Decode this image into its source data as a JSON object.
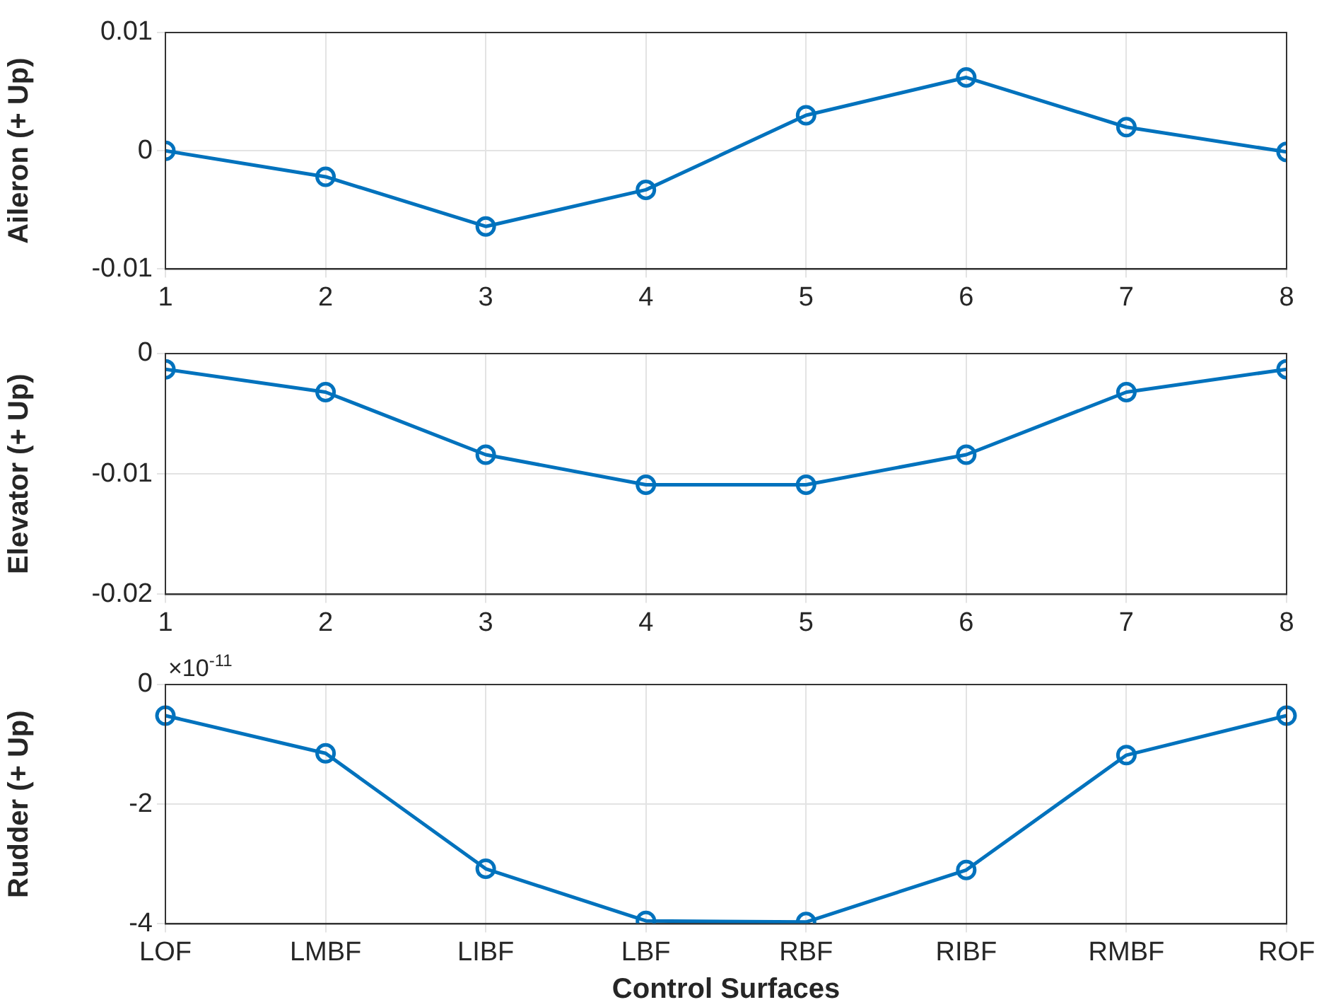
{
  "chart_data": [
    {
      "type": "line",
      "ylabel": "Aileron (+ Up)",
      "x": [
        1,
        2,
        3,
        4,
        5,
        6,
        7,
        8
      ],
      "xlim": [
        1,
        8
      ],
      "xticks": [
        1,
        2,
        3,
        4,
        5,
        6,
        7,
        8
      ],
      "ylim": [
        -0.01,
        0.01
      ],
      "yticks": [
        -0.01,
        0,
        0.01
      ],
      "grid": true,
      "marker": "circle",
      "line_style": "solid",
      "series": [
        {
          "color": "#0072bd",
          "values": [
            0,
            -0.0022,
            -0.0064,
            -0.0033,
            0.003,
            0.0062,
            0.002,
            -0.0001
          ]
        }
      ]
    },
    {
      "type": "line",
      "ylabel": "Elevator (+ Up)",
      "x": [
        1,
        2,
        3,
        4,
        5,
        6,
        7,
        8
      ],
      "xlim": [
        1,
        8
      ],
      "xticks": [
        1,
        2,
        3,
        4,
        5,
        6,
        7,
        8
      ],
      "ylim": [
        -0.02,
        0
      ],
      "yticks": [
        -0.02,
        -0.01,
        0
      ],
      "grid": true,
      "marker": "circle",
      "line_style": "solid",
      "series": [
        {
          "color": "#0072bd",
          "values": [
            -0.0013,
            -0.0032,
            -0.0084,
            -0.0109,
            -0.0109,
            -0.0084,
            -0.0032,
            -0.0013
          ]
        }
      ]
    },
    {
      "type": "line",
      "ylabel": "Rudder (+ Up)",
      "xlabel": "Control Surfaces",
      "categories": [
        "LOF",
        "LMBF",
        "LIBF",
        "LBF",
        "RBF",
        "RIBF",
        "RMBF",
        "ROF"
      ],
      "ylim": [
        -4,
        0
      ],
      "yticks": [
        -4,
        -2,
        0
      ],
      "grid": true,
      "marker": "circle",
      "line_style": "solid",
      "annotations": [
        "×10$^{-11}$"
      ],
      "series": [
        {
          "color": "#0072bd",
          "values": [
            -0.52,
            -1.15,
            -3.08,
            -3.95,
            -3.97,
            -3.1,
            -1.18,
            -0.52
          ]
        }
      ]
    }
  ]
}
